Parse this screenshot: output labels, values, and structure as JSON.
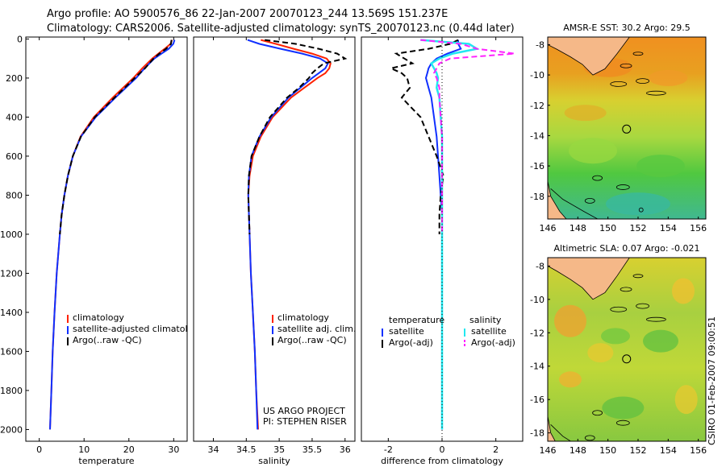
{
  "header": {
    "line1": "Argo profile: AO 5900576_86 22-Jan-2007 20070123_244 13.569S 151.237E",
    "line2": "Climatology: CARS2006. Satellite-adjusted climatology: synTS_20070123.nc (0.44d later)"
  },
  "side_label": "CSIRO 01-Feb-2007 09:00:51",
  "colors": {
    "climatology": "#ff2200",
    "satellite": "#1030ff",
    "argo": "#000000",
    "sat_sal": "#22e8f0",
    "argo_sal": "#ff22ff"
  },
  "chart_data": [
    {
      "type": "line",
      "id": "temperature",
      "xlabel": "temperature",
      "ylabel": "",
      "xlim": [
        -3,
        33
      ],
      "ylim": [
        2060,
        -10
      ],
      "invert_y": true,
      "xticks": [
        0,
        10,
        20,
        30
      ],
      "yticks": [
        0,
        200,
        400,
        600,
        800,
        1000,
        1200,
        1400,
        1600,
        1800,
        2000
      ],
      "legend": [
        "climatology",
        "satellite-adjusted climatology",
        "Argo(..raw -QC)"
      ],
      "depth": [
        5,
        25,
        50,
        75,
        100,
        150,
        200,
        300,
        400,
        500,
        600,
        700,
        800,
        900,
        1000,
        1200,
        1400,
        1600,
        1800,
        2000
      ],
      "series": [
        {
          "name": "climatology",
          "values": [
            29.6,
            29.3,
            28.0,
            26.6,
            25.2,
            23.0,
            21.0,
            16.4,
            12.2,
            9.2,
            7.5,
            6.4,
            5.6,
            5.0,
            4.6,
            3.9,
            3.4,
            3.0,
            2.7,
            2.4
          ]
        },
        {
          "name": "satellite-adjusted climatology",
          "values": [
            30.2,
            29.9,
            28.9,
            27.3,
            25.7,
            23.5,
            21.6,
            17.0,
            12.6,
            9.3,
            7.5,
            6.4,
            5.6,
            5.0,
            4.6,
            3.9,
            3.4,
            3.0,
            2.7,
            2.4
          ]
        },
        {
          "name": "Argo(..raw -QC)",
          "values": [
            29.5,
            29.4,
            28.3,
            26.8,
            25.5,
            23.6,
            21.3,
            16.8,
            12.4,
            9.3,
            7.5,
            6.4,
            5.6,
            5.0,
            4.6,
            null,
            null,
            null,
            null,
            null
          ]
        }
      ]
    },
    {
      "type": "line",
      "id": "salinity",
      "xlabel": "salinity",
      "ylabel": "",
      "xlim": [
        33.7,
        36.15
      ],
      "ylim": [
        2060,
        -10
      ],
      "invert_y": true,
      "xticks": [
        34,
        34.5,
        35,
        35.5,
        36
      ],
      "legend": [
        "climatology",
        "satellite adj. clim.",
        "Argo(..raw -QC)"
      ],
      "annotation": [
        "US ARGO PROJECT",
        "PI: STEPHEN RISER"
      ],
      "depth": [
        5,
        25,
        50,
        75,
        100,
        125,
        150,
        175,
        200,
        250,
        300,
        400,
        500,
        600,
        700,
        800,
        1000,
        1200,
        1400,
        1600,
        1800,
        2000
      ],
      "series": [
        {
          "name": "climatology",
          "values": [
            34.72,
            34.95,
            35.22,
            35.5,
            35.72,
            35.78,
            35.76,
            35.7,
            35.58,
            35.38,
            35.18,
            34.9,
            34.72,
            34.6,
            34.55,
            34.53,
            34.55,
            34.57,
            34.6,
            34.63,
            34.65,
            34.68
          ]
        },
        {
          "name": "satellite adj. clim.",
          "values": [
            34.52,
            34.7,
            35.02,
            35.35,
            35.62,
            35.74,
            35.7,
            35.6,
            35.5,
            35.32,
            35.14,
            34.88,
            34.7,
            34.58,
            34.54,
            34.53,
            34.55,
            34.57,
            34.6,
            34.63,
            34.65,
            34.67
          ]
        },
        {
          "name": "Argo(..raw -QC)",
          "values": [
            34.78,
            35.25,
            35.6,
            35.88,
            36.0,
            35.68,
            35.58,
            35.5,
            35.45,
            35.3,
            35.12,
            34.86,
            34.7,
            34.58,
            34.54,
            34.53,
            34.55,
            null,
            null,
            null,
            null,
            null
          ]
        }
      ]
    },
    {
      "type": "line",
      "id": "difference",
      "xlabel": "difference from climatology",
      "ylabel": "",
      "xlim": [
        -3,
        3
      ],
      "ylim": [
        2060,
        -10
      ],
      "invert_y": true,
      "xticks": [
        -2,
        0,
        2
      ],
      "legend_temperature": {
        "title": "temperature",
        "items": [
          "satellite",
          "Argo(-adj)"
        ]
      },
      "legend_salinity": {
        "title": "salinity",
        "items": [
          "satellite",
          "Argo(-adj)"
        ]
      },
      "depth": [
        5,
        25,
        50,
        75,
        100,
        125,
        150,
        175,
        200,
        250,
        300,
        400,
        500,
        600,
        700,
        800,
        900,
        1000,
        1200,
        1600,
        2000
      ],
      "series": [
        {
          "name": "temperature satellite",
          "values": [
            0.6,
            0.6,
            0.7,
            0.2,
            -0.2,
            -0.4,
            -0.5,
            -0.55,
            -0.6,
            -0.5,
            -0.4,
            -0.3,
            -0.2,
            -0.15,
            -0.1,
            -0.05,
            0,
            0,
            0,
            0,
            0
          ]
        },
        {
          "name": "temperature Argo(-adj)",
          "values": [
            0.6,
            0.3,
            -0.5,
            -1.7,
            -1.4,
            -1.1,
            -1.9,
            -1.5,
            -1.3,
            -1.2,
            -1.5,
            -0.8,
            -0.5,
            -0.2,
            0.05,
            -0.05,
            -0.1,
            -0.1,
            null,
            null,
            null
          ]
        },
        {
          "name": "salinity satellite",
          "values": [
            -0.8,
            1.0,
            1.3,
            0.4,
            -0.1,
            -0.4,
            -0.3,
            -0.2,
            -0.15,
            -0.2,
            -0.1,
            -0.05,
            0,
            0,
            0,
            0,
            0,
            0,
            0,
            0,
            0
          ]
        },
        {
          "name": "salinity Argo(-adj)",
          "values": [
            -0.8,
            0.7,
            1.3,
            2.7,
            0.3,
            -0.1,
            -0.2,
            -0.3,
            -0.2,
            -0.1,
            -0.1,
            -0.05,
            0,
            0,
            0,
            0,
            0,
            0,
            null,
            null,
            null
          ]
        }
      ]
    },
    {
      "type": "heatmap",
      "id": "sst_map",
      "title": "AMSR-E SST: 30.2 Argo: 29.5",
      "xlim": [
        146,
        156.5
      ],
      "ylim": [
        -19.5,
        -7.5
      ],
      "xticks": [
        146,
        148,
        150,
        152,
        154,
        156
      ],
      "yticks": [
        -8,
        -10,
        -12,
        -14,
        -16,
        -18
      ],
      "marker": {
        "lon": 151.237,
        "lat": -13.569
      }
    },
    {
      "type": "heatmap",
      "id": "sla_map",
      "title": "Altimetric SLA: 0.07 Argo: -0.021",
      "xlim": [
        146,
        156.5
      ],
      "ylim": [
        -18.5,
        -7.5
      ],
      "xticks": [
        146,
        148,
        150,
        152,
        154,
        156
      ],
      "yticks": [
        -8,
        -10,
        -12,
        -14,
        -16,
        -18
      ],
      "marker": {
        "lon": 151.237,
        "lat": -13.569
      }
    }
  ]
}
